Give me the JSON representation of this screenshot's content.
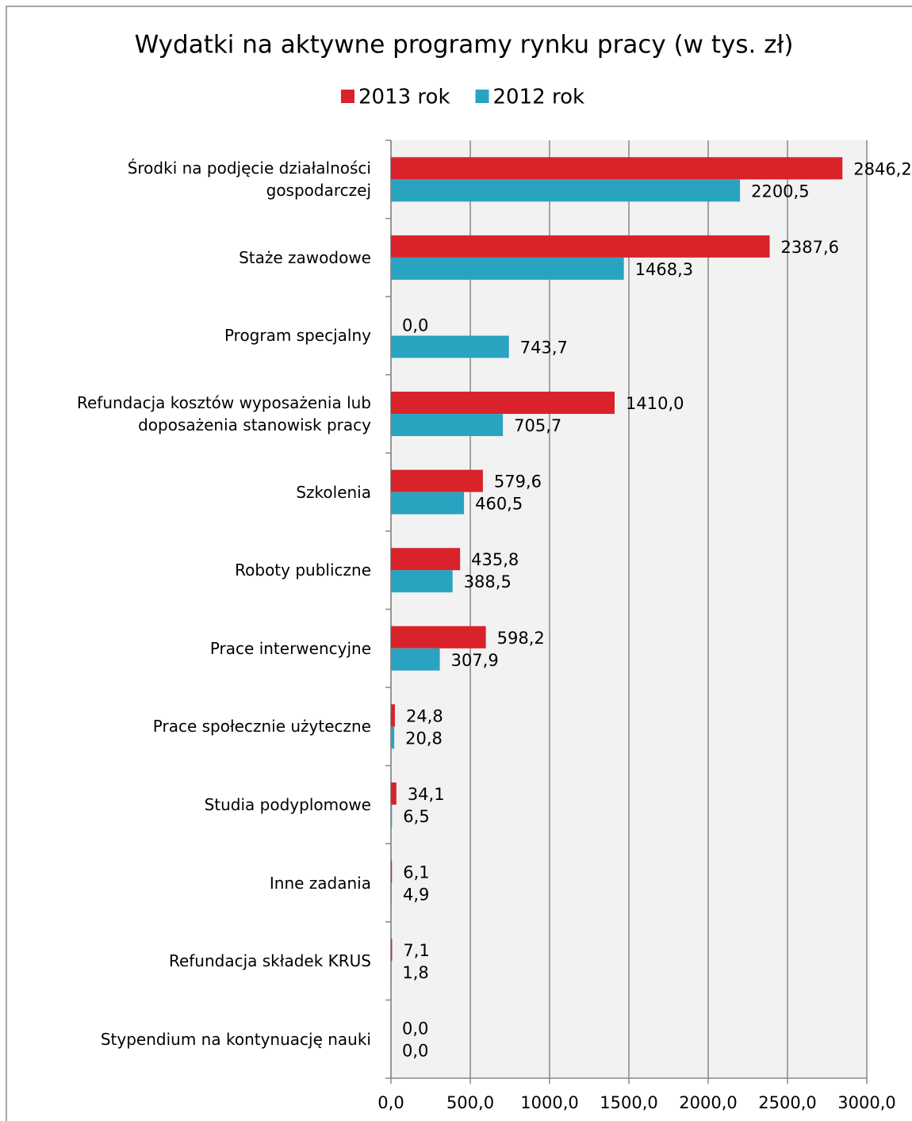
{
  "chart_data": {
    "type": "hbar",
    "title": "Wydatki na aktywne programy rynku pracy (w tys. zł)",
    "categories": [
      "Środki na podjęcie działalności\ngospodarczej",
      "Staże zawodowe",
      "Program specjalny",
      "Refundacja kosztów wyposażenia lub\ndoposażenia stanowisk pracy",
      "Szkolenia",
      "Roboty publiczne",
      "Prace interwencyjne",
      "Prace społecznie użyteczne",
      "Studia podyplomowe",
      "Inne zadania",
      "Refundacja składek KRUS",
      "Stypendium na kontynuację nauki"
    ],
    "series": [
      {
        "name": "2013 rok",
        "color": "#d9222a",
        "values": [
          2846.2,
          2387.6,
          0,
          1410,
          579.6,
          435.8,
          598.2,
          24.8,
          34.1,
          6.1,
          7.1,
          0
        ],
        "value_labels": [
          "2846,2",
          "2387,6",
          "0,0",
          "1410,0",
          "579,6",
          "435,8",
          "598,2",
          "24,8",
          "34,1",
          "6,1",
          "7,1",
          "0,0"
        ]
      },
      {
        "name": "2012 rok",
        "color": "#2aa3c0",
        "values": [
          2200.5,
          1468.3,
          743.7,
          705.7,
          460.5,
          388.5,
          307.9,
          20.8,
          6.5,
          4.9,
          1.8,
          0
        ],
        "value_labels": [
          "2200,5",
          "1468,3",
          "743,7",
          "705,7",
          "460,5",
          "388,5",
          "307,9",
          "20,8",
          "6,5",
          "4,9",
          "1,8",
          "0,0"
        ]
      }
    ],
    "xlim": [
      0,
      3000
    ],
    "xticks": [
      {
        "value": 0,
        "label": "0,0"
      },
      {
        "value": 500,
        "label": "500,0"
      },
      {
        "value": 1000,
        "label": "1000,0"
      },
      {
        "value": 1500,
        "label": "1500,0"
      },
      {
        "value": 2000,
        "label": "2000,0"
      },
      {
        "value": 2500,
        "label": "2500,0"
      },
      {
        "value": 3000,
        "label": "3000,0"
      }
    ],
    "grid": true,
    "legend": "top"
  }
}
